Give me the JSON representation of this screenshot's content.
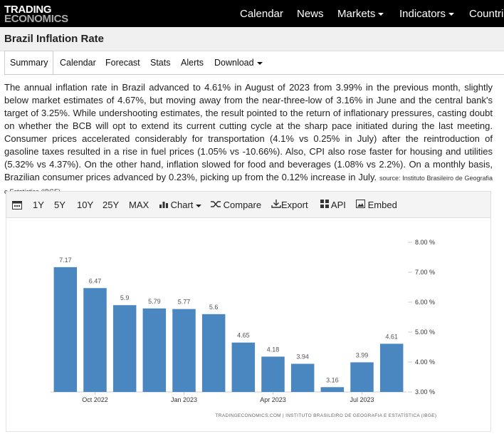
{
  "nav": {
    "logo": [
      "TRADING",
      "ECONOMICS"
    ],
    "menu": [
      "Calendar",
      "News",
      "Markets",
      "Indicators",
      "Countries"
    ]
  },
  "header": {
    "title": "Brazil Inflation Rate"
  },
  "tabs": [
    "Summary",
    "Calendar",
    "Forecast",
    "Stats",
    "Alerts",
    "Download"
  ],
  "summary": {
    "text": "The annual inflation rate in Brazil advanced to 4.61% in August of 2023 from 3.99% in the previous month, slightly below market estimates of 4.67%, but moving away from the near-three-low of 3.16% in June and the central bank's target of 3.25%. While undershooting estimates, the result pointed to the return of inflationary pressures, casting doubt on whether the BCB will opt to extend its current cutting cycle at the sharp pace initiated during the last meeting. Consumer prices accelerated considerably for transportation (4.1% vs 0.25% in July) after the reintroduction of gasoline taxes resulted in a rise in fuel prices (1.05% vs -10.66%). Also, CPI also rose faster for housing and utilities (5.32% vs 4.37%). On the other hand, inflation slowed for food and beverages (1.08% vs 2.2%). On a monthly basis, Brazilian consumer prices advanced by 0.23%, picking up from the 0.12% increase in July.",
    "source": "source: Instituto Brasileiro de Geografia e Estatística (IBGE)"
  },
  "toolbar": [
    "1Y",
    "5Y",
    "10Y",
    "25Y",
    "MAX",
    "Chart",
    "Compare",
    "Export",
    "API",
    "Embed"
  ],
  "chart_data": {
    "type": "bar",
    "categories": [
      null,
      "Oct 2022",
      null,
      null,
      "Jan 2023",
      null,
      null,
      "Apr 2023",
      null,
      null,
      "Jul 2023",
      null
    ],
    "values": [
      7.17,
      6.47,
      5.9,
      5.79,
      5.77,
      5.6,
      4.65,
      4.18,
      3.94,
      3.16,
      3.99,
      4.61
    ],
    "color": "#4a86c0",
    "ylim": [
      3,
      8
    ],
    "yticks": [
      {
        "value": 3,
        "label": "3.00 %"
      },
      {
        "value": 4,
        "label": "4.00 %"
      },
      {
        "value": 5,
        "label": "5.00 %"
      },
      {
        "value": 6,
        "label": "6.00 %"
      },
      {
        "value": 7,
        "label": "7.00 %"
      },
      {
        "value": 8,
        "label": "8.00 %"
      }
    ],
    "source": "TRADINGECONOMICS.COM | INSTITUTO BRASILEIRO DE GEOGRAFIA E ESTATÍSTICA (IBGE)"
  }
}
